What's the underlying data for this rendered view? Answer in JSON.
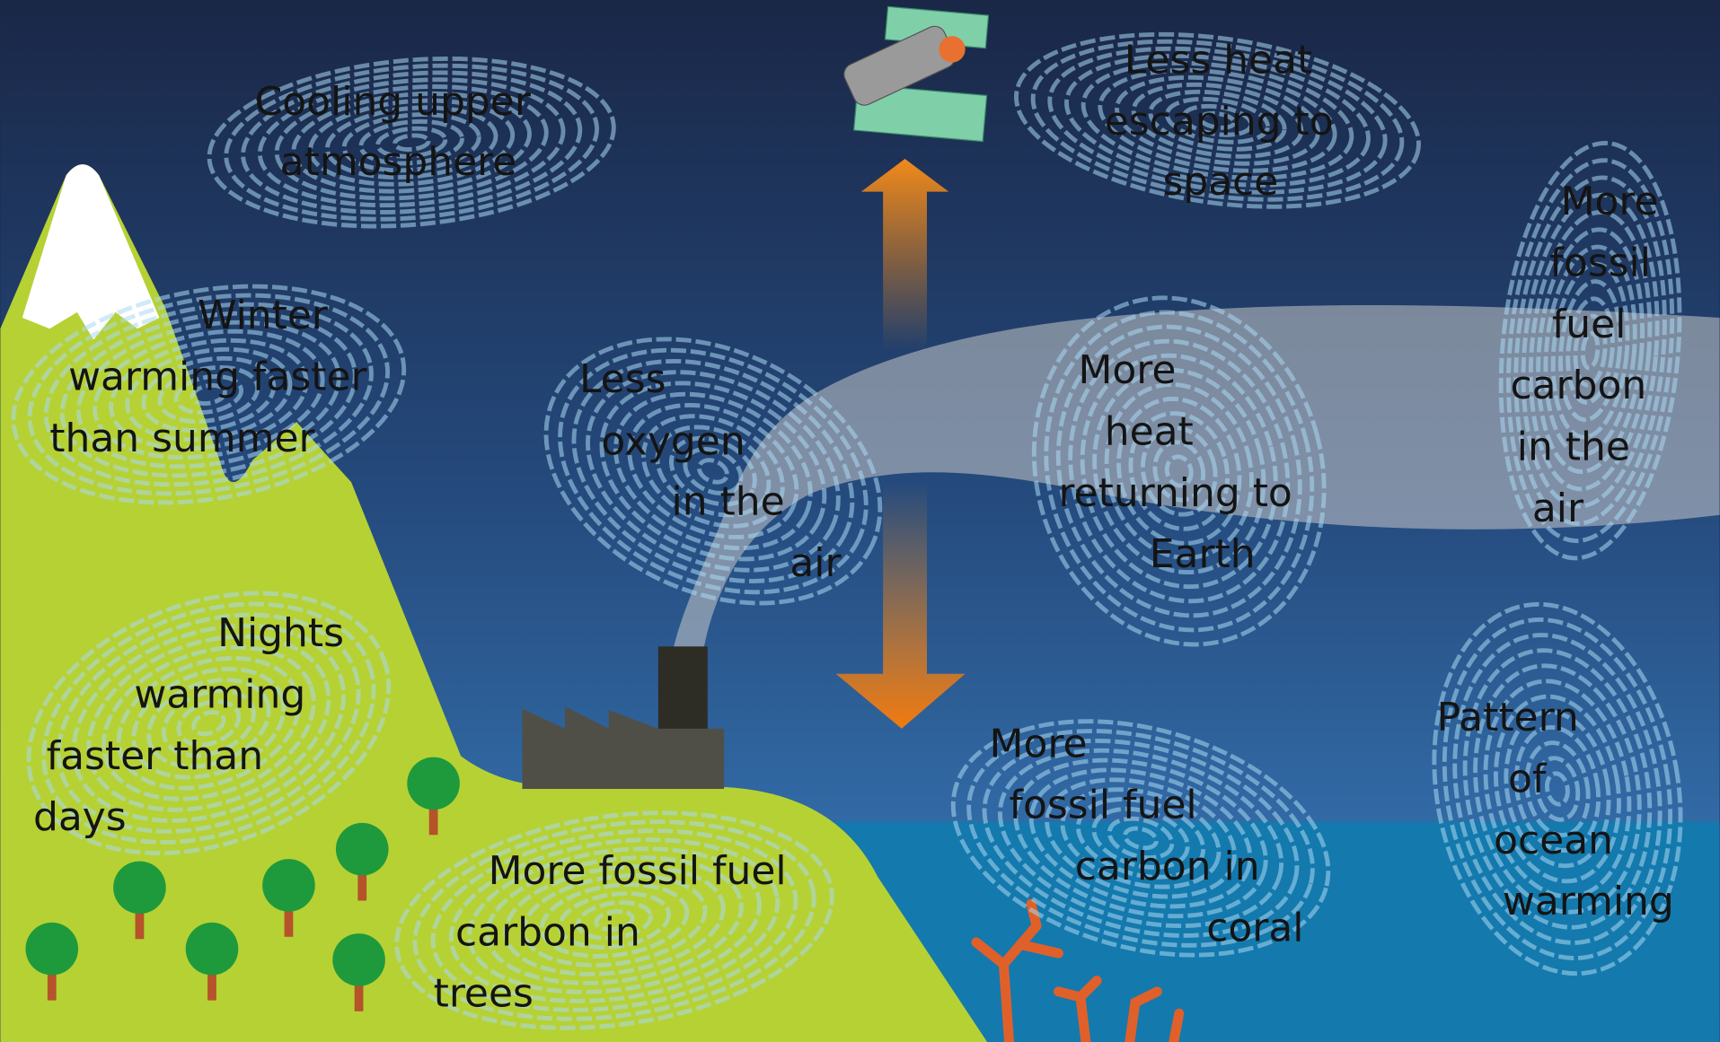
{
  "labels": [
    {
      "lines": [
        "Cooling upper",
        "atmosphere"
      ]
    },
    {
      "lines": [
        "Less heat",
        "escaping to",
        "space"
      ]
    },
    {
      "lines": [
        "More",
        "fossil",
        "fuel",
        "carbon",
        "in the",
        "air"
      ]
    },
    {
      "lines": [
        "Winter",
        "warming faster",
        "than summer"
      ]
    },
    {
      "lines": [
        "Less",
        "oxygen",
        "in the",
        "air"
      ]
    },
    {
      "lines": [
        "More",
        "heat",
        "returning to",
        "Earth"
      ]
    },
    {
      "lines": [
        "Nights",
        "warming",
        "faster than",
        "days"
      ]
    },
    {
      "lines": [
        "More fossil fuel",
        "carbon in",
        "trees"
      ]
    },
    {
      "lines": [
        "More",
        "fossil fuel",
        "carbon in",
        "coral"
      ]
    },
    {
      "lines": [
        "Pattern",
        "of",
        "ocean",
        "warming"
      ]
    }
  ]
}
